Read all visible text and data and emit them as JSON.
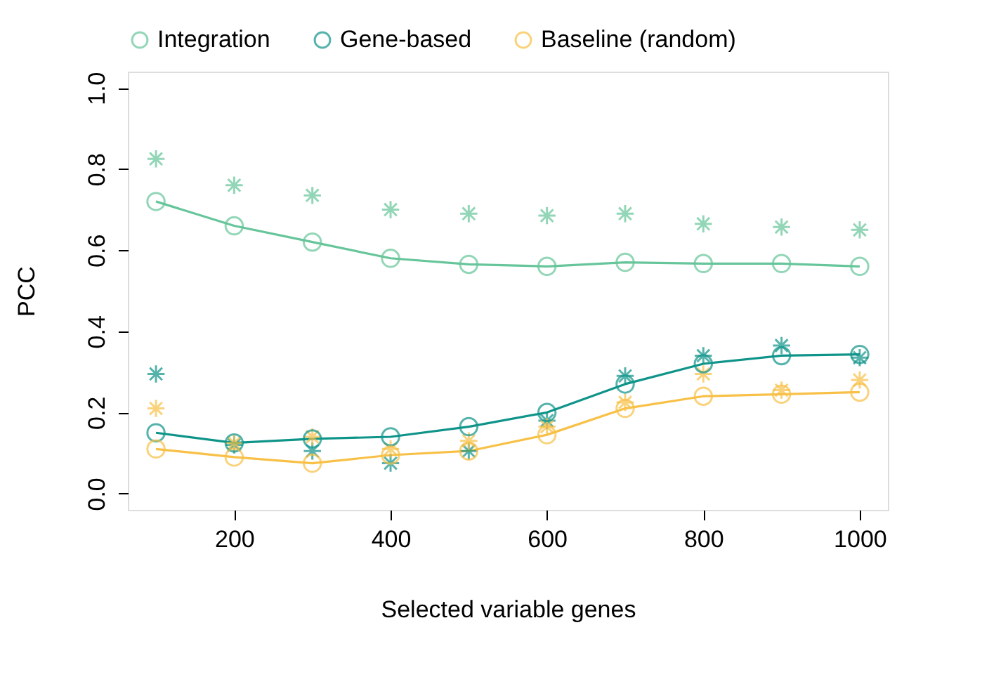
{
  "chart_data": {
    "type": "line",
    "xlabel": "Selected variable genes",
    "ylabel": "PCC",
    "x": [
      100,
      200,
      300,
      400,
      500,
      600,
      700,
      800,
      900,
      1000
    ],
    "xlim": [
      64,
      1036
    ],
    "ylim": [
      -0.04,
      1.04
    ],
    "xticks": [
      200,
      400,
      600,
      800,
      {
        "value": 1000,
        "label": "1000"
      }
    ],
    "yticks": [
      {
        "value": 0,
        "label": "0.0"
      },
      0.2,
      0.4,
      0.6,
      0.8,
      {
        "value": 1,
        "label": "1.0"
      }
    ],
    "grid": false,
    "legend": "top",
    "line_style": "solid",
    "series": [
      {
        "name": "Integration",
        "color": "#66c59a",
        "marker": "circle",
        "values": [
          0.72,
          0.66,
          0.62,
          0.58,
          0.565,
          0.56,
          0.57,
          0.567,
          0.567,
          0.56
        ]
      },
      {
        "name": "Gene-based",
        "color": "#0f948a",
        "marker": "circle",
        "values": [
          0.15,
          0.125,
          0.135,
          0.14,
          0.165,
          0.2,
          0.27,
          0.32,
          0.34,
          0.343
        ]
      },
      {
        "name": "Baseline (random)",
        "color": "#f8c046",
        "marker": "circle",
        "values": [
          0.11,
          0.09,
          0.075,
          0.095,
          0.105,
          0.145,
          0.21,
          0.24,
          0.245,
          0.25
        ]
      },
      {
        "color": "#66c59a",
        "type": "scatter",
        "marker": "cross",
        "values": [
          0.825,
          0.76,
          0.735,
          0.7,
          0.69,
          0.685,
          0.69,
          0.665,
          0.657,
          0.65
        ]
      },
      {
        "color": "#0f948a",
        "type": "scatter",
        "marker": "cross",
        "values": [
          0.295,
          0.12,
          0.105,
          0.075,
          0.105,
          0.18,
          0.29,
          0.34,
          0.365,
          0.335
        ]
      },
      {
        "color": "#f8c046",
        "type": "scatter",
        "marker": "cross",
        "values": [
          0.21,
          0.125,
          0.14,
          0.11,
          0.13,
          0.165,
          0.225,
          0.295,
          0.255,
          0.28
        ]
      }
    ]
  }
}
